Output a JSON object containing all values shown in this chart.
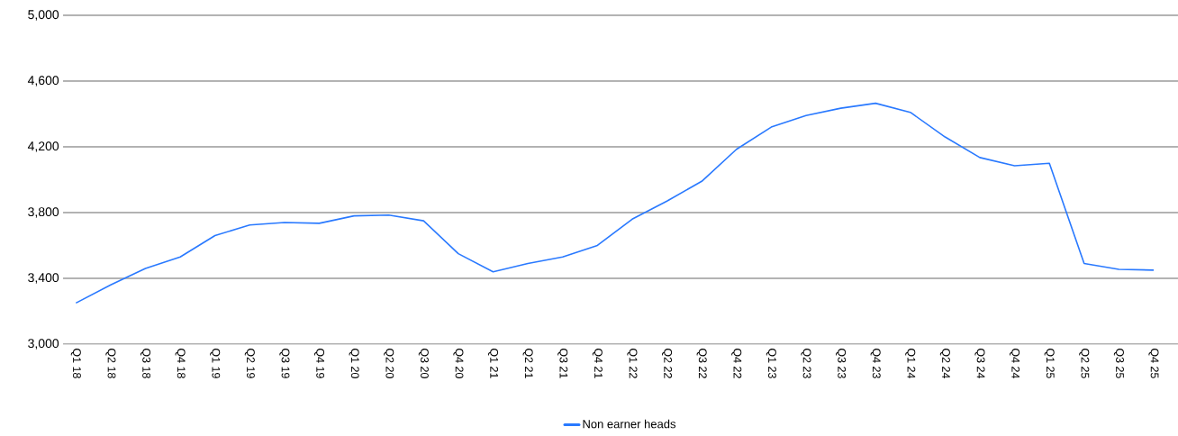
{
  "chart_data": {
    "type": "line",
    "categories": [
      "Q1 18",
      "Q2 18",
      "Q3 18",
      "Q4 18",
      "Q1 19",
      "Q2 19",
      "Q3 19",
      "Q4 19",
      "Q1 20",
      "Q2 20",
      "Q3 20",
      "Q4 20",
      "Q1 21",
      "Q2 21",
      "Q3 21",
      "Q4 21",
      "Q1 22",
      "Q2 22",
      "Q3 22",
      "Q4 22",
      "Q1 23",
      "Q2 23",
      "Q3 23",
      "Q4 23",
      "Q1 24",
      "Q2 24",
      "Q3 24",
      "Q4 24",
      "Q1 25",
      "Q2 25",
      "Q3 25",
      "Q4 25"
    ],
    "series": [
      {
        "name": "Non earner heads",
        "color": "#2979ff",
        "values": [
          3250,
          3360,
          3460,
          3530,
          3660,
          3725,
          3740,
          3735,
          3780,
          3785,
          3750,
          3550,
          3440,
          3490,
          3530,
          3600,
          3760,
          3870,
          3990,
          4185,
          4320,
          4390,
          4435,
          4465,
          4410,
          4260,
          4135,
          4085,
          4100,
          3490,
          3455,
          3450
        ]
      }
    ],
    "ylim": [
      3000,
      5000
    ],
    "yticks": [
      {
        "value": 3000,
        "label": "3,000"
      },
      {
        "value": 3400,
        "label": "3,400"
      },
      {
        "value": 3800,
        "label": "3,800"
      },
      {
        "value": 4200,
        "label": "4,200"
      },
      {
        "value": 4600,
        "label": "4,600"
      },
      {
        "value": 5000,
        "label": "5,000"
      }
    ],
    "grid": "y",
    "legend": "bottom",
    "marker": "none",
    "line_style": "solid"
  }
}
